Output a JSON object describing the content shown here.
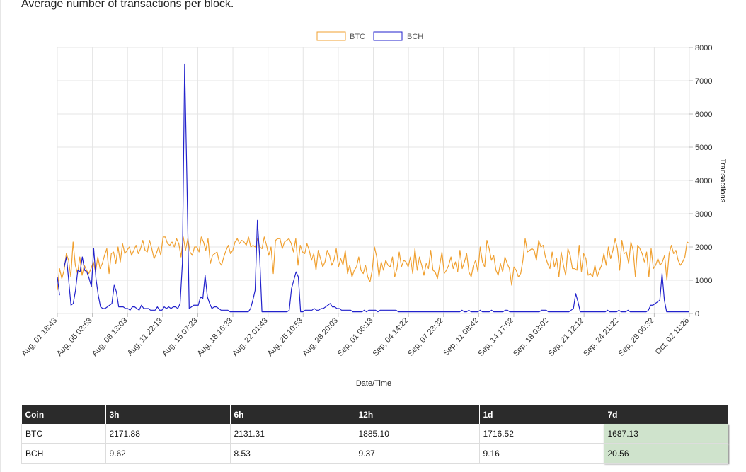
{
  "page": {
    "subtitle": "Average number of transactions per block."
  },
  "chart_data": {
    "type": "line",
    "xlabel": "Date/Time",
    "ylabel": "Transactions",
    "ylim": [
      0,
      8000
    ],
    "yticks": [
      0,
      1000,
      2000,
      3000,
      4000,
      5000,
      6000,
      7000,
      8000
    ],
    "grid": true,
    "legend_position": "top-center",
    "x_tick_labels": [
      "Aug, 01 18:43",
      "Aug, 05 03:53",
      "Aug, 08 13:03",
      "Aug, 11 22:13",
      "Aug, 15 07:23",
      "Aug, 18 16:33",
      "Aug, 22 01:43",
      "Aug, 25 10:53",
      "Aug, 28 20:03",
      "Sep, 01 05:13",
      "Sep, 04 14:22",
      "Sep, 07 23:32",
      "Sep, 11 08:42",
      "Sep, 14 17:52",
      "Sep, 18 03:02",
      "Sep, 21 12:12",
      "Sep, 24 21:22",
      "Sep, 28 06:32",
      "Oct, 02 11:26"
    ],
    "series": [
      {
        "name": "BTC",
        "color": "#f0a030",
        "values": [
          700,
          1350,
          1050,
          1300,
          1800,
          1600,
          1100,
          2150,
          1450,
          1200,
          1700,
          1150,
          1450,
          1300,
          1200,
          1350,
          1550,
          1250,
          1700,
          1350,
          1500,
          1750,
          1950,
          1200,
          1800,
          1850,
          1500,
          2000,
          1550,
          2100,
          1800,
          1900,
          2000,
          1750,
          1900,
          2050,
          1800,
          1950,
          2200,
          1900,
          1850,
          2200,
          1950,
          1650,
          1800,
          2000,
          1750,
          2300,
          2300,
          2100,
          2050,
          2150,
          2000,
          2250,
          2100,
          1700,
          2300,
          1900,
          2250,
          1850,
          1750,
          2000,
          2000,
          1850,
          2300,
          2150,
          1900,
          2250,
          1500,
          1750,
          1800,
          1850,
          1550,
          1450,
          1700,
          1900,
          2050,
          1800,
          1900,
          2150,
          2250,
          2100,
          2200,
          2150,
          2050,
          2300,
          2000,
          2050,
          2000,
          2250,
          2000,
          1950,
          2300,
          2050,
          1750,
          2000,
          1200,
          2200,
          2250,
          2250,
          1950,
          2150,
          2200,
          2250,
          2100,
          1850,
          2250,
          1450,
          2050,
          1850,
          1800,
          2100,
          1900,
          1600,
          1800,
          1300,
          1900,
          1650,
          1400,
          1550,
          1900,
          1750,
          1450,
          1600,
          1950,
          1400,
          1650,
          1450,
          1900,
          1200,
          1450,
          1100,
          1300,
          1400,
          1700,
          1300,
          1200,
          1450,
          1100,
          950,
          1300,
          2000,
          1700,
          1100,
          1550,
          1300,
          1600,
          1450,
          1400,
          1700,
          1100,
          1350,
          1850,
          1400,
          1600,
          1550,
          1400,
          1700,
          1200,
          1950,
          1300,
          1700,
          1450,
          1150,
          1500,
          1350,
          1900,
          1300,
          1250,
          1050,
          1450,
          1850,
          1200,
          1300,
          1450,
          1700,
          1350,
          1550,
          1250,
          1900,
          1350,
          1550,
          1800,
          1250,
          1100,
          1450,
          1600,
          1250,
          2000,
          1550,
          1400,
          2200,
          1950,
          1600,
          1750,
          1300,
          1150,
          1500,
          1250,
          1700,
          1500,
          1350,
          850,
          1400,
          1300,
          1100,
          1200,
          1600,
          2250,
          1850,
          1900,
          1950,
          1900,
          1600,
          2200,
          2000,
          2050,
          1700,
          1500,
          1350,
          1850,
          1400,
          1650,
          1100,
          1850,
          1450,
          1150,
          1950,
          1750,
          1350,
          1350,
          1300,
          2050,
          1250,
          1800,
          1650,
          1150,
          1200,
          1100,
          1450,
          1100,
          1300,
          1450,
          1800,
          1450,
          2000,
          1650,
          1900,
          2250,
          1950,
          1300,
          2200,
          1800,
          1850,
          1500,
          2150,
          1900,
          1100,
          2050,
          1950,
          1800,
          1550,
          1850,
          1100,
          1950,
          1350,
          1450,
          1650,
          1450,
          1550,
          1750,
          1000,
          1800,
          2050,
          1800,
          1900,
          1600,
          1450,
          1550,
          1700,
          2150,
          2100
        ]
      },
      {
        "name": "BCH",
        "color": "#2222cc",
        "values": [
          1100,
          550,
          null,
          1400,
          1700,
          1000,
          250,
          300,
          700,
          1300,
          1250,
          1700,
          1300,
          1250,
          1050,
          800,
          1950,
          1050,
          550,
          200,
          150,
          150,
          200,
          250,
          300,
          850,
          650,
          200,
          200,
          200,
          150,
          150,
          100,
          200,
          200,
          150,
          100,
          250,
          150,
          150,
          150,
          100,
          100,
          100,
          200,
          100,
          100,
          200,
          150,
          200,
          150,
          200,
          200,
          150,
          300,
          1500,
          7500,
          4000,
          150,
          200,
          250,
          250,
          250,
          500,
          450,
          1150,
          500,
          300,
          150,
          200,
          200,
          150,
          100,
          100,
          100,
          100,
          50,
          50,
          50,
          50,
          50,
          50,
          50,
          50,
          50,
          150,
          400,
          700,
          2800,
          1700,
          50,
          50,
          50,
          50,
          50,
          50,
          50,
          50,
          50,
          50,
          50,
          50,
          100,
          750,
          1000,
          1250,
          1100,
          50,
          50,
          100,
          100,
          100,
          100,
          150,
          100,
          100,
          150,
          150,
          200,
          250,
          300,
          200,
          200,
          150,
          150,
          100,
          100,
          100,
          100,
          100,
          50,
          50,
          50,
          50,
          50,
          100,
          50,
          100,
          100,
          100,
          100,
          50,
          100,
          100,
          100,
          100,
          100,
          100,
          100,
          100,
          50,
          50,
          50,
          50,
          50,
          50,
          50,
          50,
          50,
          50,
          50,
          50,
          50,
          50,
          50,
          50,
          50,
          50,
          50,
          50,
          50,
          50,
          50,
          50,
          50,
          50,
          50,
          50,
          100,
          50,
          50,
          100,
          50,
          50,
          50,
          50,
          100,
          50,
          50,
          50,
          50,
          100,
          50,
          50,
          50,
          50,
          50,
          100,
          100,
          50,
          50,
          50,
          50,
          50,
          50,
          50,
          50,
          50,
          50,
          50,
          50,
          50,
          50,
          100,
          100,
          100,
          50,
          50,
          50,
          50,
          50,
          50,
          50,
          50,
          50,
          50,
          100,
          150,
          600,
          350,
          50,
          50,
          50,
          50,
          50,
          50,
          50,
          50,
          50,
          50,
          50,
          50,
          100,
          50,
          50,
          50,
          50,
          100,
          50,
          50,
          50,
          100,
          50,
          50,
          50,
          50,
          50,
          50,
          50,
          50,
          100,
          250,
          250,
          300,
          350,
          400,
          1200,
          400,
          50,
          50,
          50,
          50,
          50,
          50,
          50,
          50,
          50,
          50,
          50
        ]
      }
    ]
  },
  "table": {
    "headers": [
      "Coin",
      "3h",
      "6h",
      "12h",
      "1d",
      "7d"
    ],
    "rows": [
      [
        "BTC",
        "2171.88",
        "2131.31",
        "1885.10",
        "1716.52",
        "1687.13"
      ],
      [
        "BCH",
        "9.62",
        "8.53",
        "9.37",
        "9.16",
        "20.56"
      ]
    ]
  }
}
